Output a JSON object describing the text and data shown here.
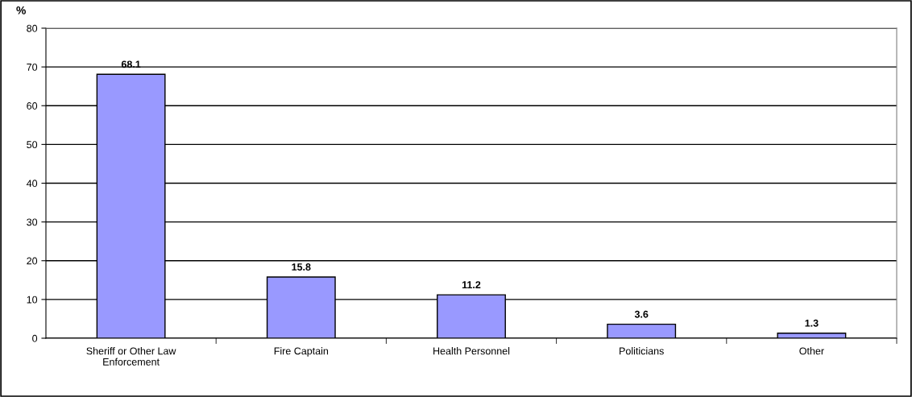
{
  "chart_data": {
    "type": "bar",
    "ylabel": "%",
    "categories": [
      "Sheriff or Other Law\nEnforcement",
      "Fire Captain",
      "Health Personnel",
      "Politicians",
      "Other"
    ],
    "values": [
      68.1,
      15.8,
      11.2,
      3.6,
      1.3
    ],
    "color": "#9999ff",
    "ylim": [
      0,
      80
    ],
    "yticks": [
      0,
      10,
      20,
      30,
      40,
      50,
      60,
      70,
      80
    ],
    "grid": "y",
    "data_labels": true
  }
}
